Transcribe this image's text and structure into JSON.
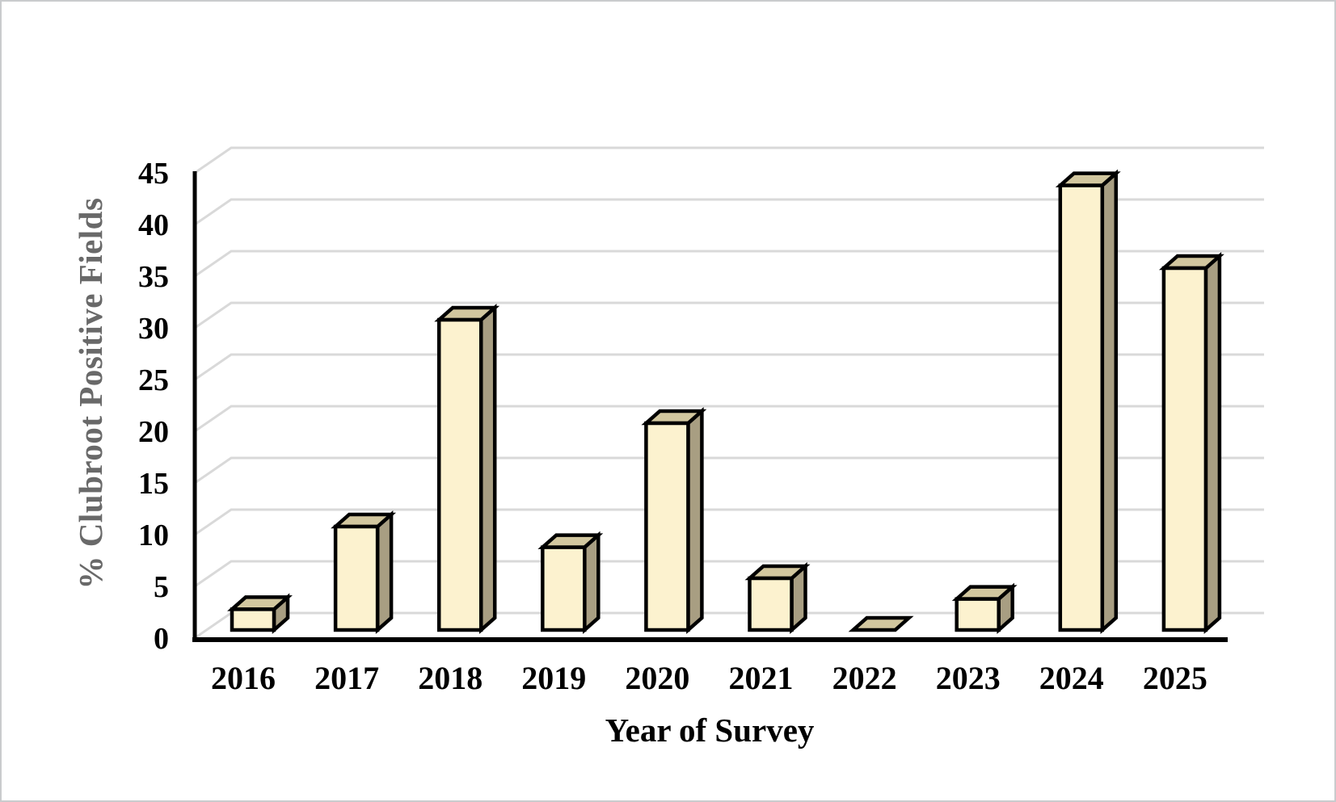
{
  "chart_data": {
    "type": "bar",
    "style": "3d-clustered-column",
    "title": "",
    "xlabel": "Year of Survey",
    "ylabel": "% Clubroot Positive Fields",
    "categories": [
      "2016",
      "2017",
      "2018",
      "2019",
      "2020",
      "2021",
      "2022",
      "2023",
      "2024",
      "2025"
    ],
    "values": [
      2,
      10,
      30,
      8,
      20,
      5,
      0,
      3,
      43,
      35
    ],
    "ylim": [
      0,
      45
    ],
    "ytick_step": 5,
    "yticks": [
      0,
      5,
      10,
      15,
      20,
      25,
      30,
      35,
      40,
      45
    ],
    "grid": true,
    "legend": "none",
    "colors": {
      "bar_front": "#FCF2CF",
      "bar_top": "#D2C79F",
      "bar_side": "#A89E82",
      "bar_outline": "#000000",
      "gridline": "#D9D9D9",
      "axis_line": "#000000",
      "tick_label": "#000000",
      "x_title": "#000000",
      "y_title": "#696969",
      "frame_border": "#c9cbcd",
      "background": "#ffffff"
    }
  }
}
